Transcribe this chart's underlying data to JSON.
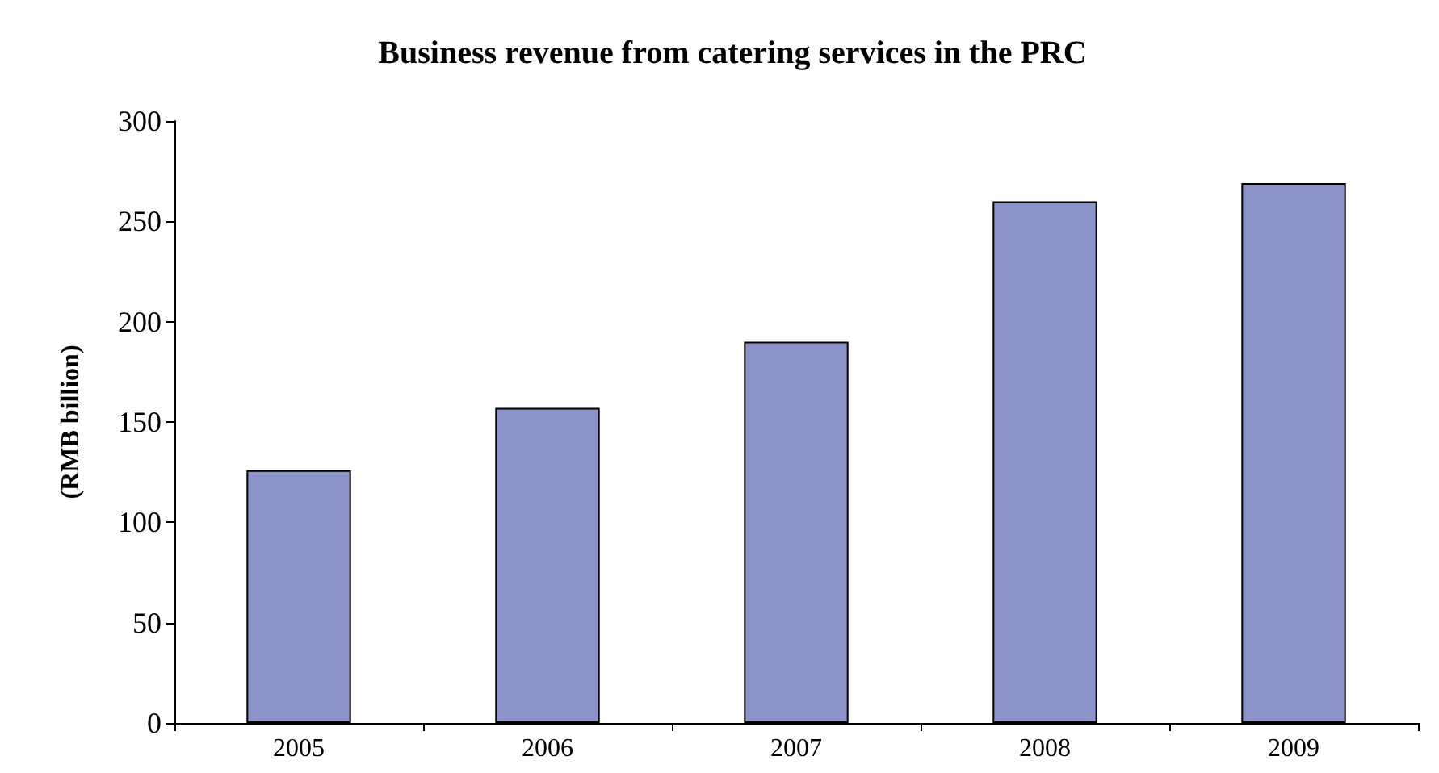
{
  "chart_data": {
    "type": "bar",
    "title": "Business revenue from catering services in the PRC",
    "ylabel": "(RMB billion)",
    "categories": [
      "2005",
      "2006",
      "2007",
      "2008",
      "2009"
    ],
    "values": [
      126,
      157,
      190,
      260,
      269
    ],
    "color": "#8b93c8",
    "ylim": [
      0,
      300
    ],
    "yticks": [
      0,
      50,
      100,
      150,
      200,
      250,
      300
    ],
    "grid": false
  }
}
